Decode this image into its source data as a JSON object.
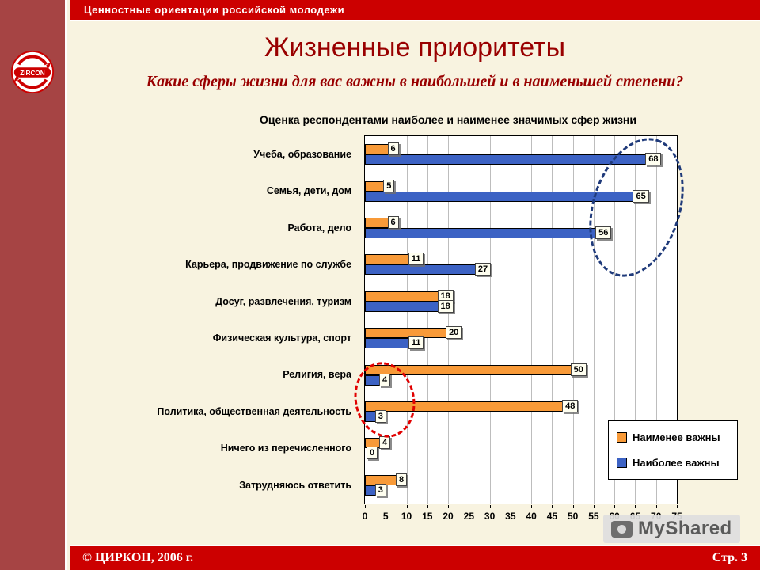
{
  "header": {
    "title": "Ценностные ориентации российской молодежи"
  },
  "sidebar": {
    "logo_text": "ZIRCON"
  },
  "slide": {
    "title": "Жизненные приоритеты",
    "subtitle": "Какие сферы жизни для вас важны в наибольшей и в наименьшей степени?"
  },
  "chart_data": {
    "type": "bar",
    "orientation": "horizontal",
    "title": "Оценка респондентами наиболее и наименее значимых сфер жизни",
    "categories": [
      "Учеба, образование",
      "Семья, дети, дом",
      "Работа, дело",
      "Карьера, продвижение по службе",
      "Досуг, развлечения, туризм",
      "Физическая культура, спорт",
      "Религия, вера",
      "Политика, общественная деятельность",
      "Ничего из перечисленного",
      "Затрудняюсь ответить"
    ],
    "series": [
      {
        "name": "Наименее важны",
        "color": "#f89a38",
        "values": [
          6,
          5,
          6,
          11,
          18,
          20,
          50,
          48,
          4,
          8
        ]
      },
      {
        "name": "Наиболее важны",
        "color": "#3c62c4",
        "values": [
          68,
          65,
          56,
          27,
          18,
          11,
          4,
          3,
          0,
          3
        ]
      }
    ],
    "xlim": [
      0,
      75
    ],
    "xticks": [
      0,
      5,
      10,
      15,
      20,
      25,
      30,
      35,
      40,
      45,
      50,
      55,
      60,
      65,
      70,
      75
    ],
    "grid": true,
    "legend_position": "bottom-right",
    "annotations": [
      {
        "shape": "ellipse",
        "style": "dashed",
        "color": "#1f3a7a"
      },
      {
        "shape": "ellipse",
        "style": "dashed",
        "color": "#e10000"
      }
    ]
  },
  "footer": {
    "copyright": "© ЦИРКОН, 2006 г.",
    "page": "Стр. 3"
  },
  "watermark": {
    "text": "MyShared"
  },
  "colors": {
    "header_red": "#cc0000",
    "sidebar_red": "#a64444",
    "background": "#f8f3e0",
    "title_red": "#990000"
  }
}
